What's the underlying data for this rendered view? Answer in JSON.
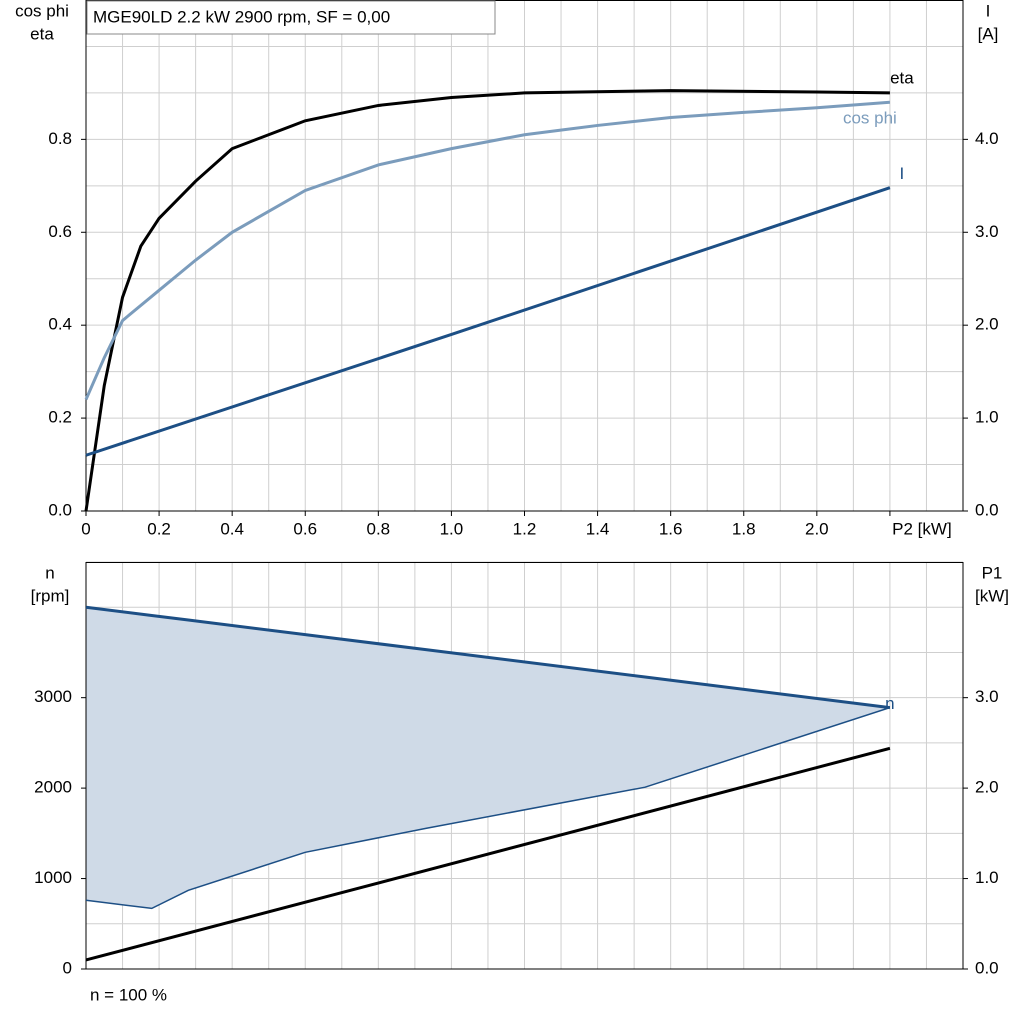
{
  "chart_data": [
    {
      "type": "line",
      "title": "MGE90LD   2.2 kW   2900 rpm, SF = 0,00",
      "y_label": [
        "cos phi",
        "eta"
      ],
      "y2_label": [
        "I",
        "[A]"
      ],
      "xlim": [
        0,
        2.4
      ],
      "xticks": [
        {
          "value": 0,
          "label": "0"
        },
        0.2,
        0.4,
        0.6,
        0.8,
        {
          "value": 1,
          "label": "1.0"
        },
        1.2,
        1.4,
        1.6,
        1.8,
        {
          "value": 2,
          "label": "2.0"
        },
        {
          "value": 2.2,
          "label": "P2 [kW]"
        }
      ],
      "minor_xticks": [
        0.1,
        0.3,
        0.5,
        0.7,
        0.9,
        1.1,
        1.3,
        1.5,
        1.7,
        1.9,
        2.1,
        2.3
      ],
      "ylim": [
        0,
        1.1
      ],
      "yticks": [
        {
          "value": 0,
          "label": "0.0"
        },
        0.2,
        0.4,
        0.6,
        0.8
      ],
      "minor_yticks": [
        0.1,
        0.3,
        0.5,
        0.7,
        0.9,
        1.0,
        1.1
      ],
      "y2lim": [
        0,
        5.5
      ],
      "y2ticks": [
        {
          "value": 0,
          "label": "0.0"
        },
        {
          "value": 1,
          "label": "1.0"
        },
        {
          "value": 2,
          "label": "2.0"
        },
        {
          "value": 3,
          "label": "3.0"
        },
        {
          "value": 4,
          "label": "4.0"
        }
      ],
      "grid": true,
      "series": [
        {
          "name": "eta",
          "color": "#000000",
          "x": [
            0,
            0.05,
            0.1,
            0.15,
            0.2,
            0.3,
            0.4,
            0.6,
            0.8,
            1.0,
            1.2,
            1.6,
            2.0,
            2.2
          ],
          "values": [
            0,
            0.27,
            0.46,
            0.57,
            0.63,
            0.71,
            0.78,
            0.84,
            0.873,
            0.89,
            0.9,
            0.905,
            0.902,
            0.9
          ]
        },
        {
          "name": "cos phi",
          "color": "#7b9cbc",
          "x": [
            0,
            0.05,
            0.1,
            0.2,
            0.3,
            0.4,
            0.6,
            0.8,
            1.0,
            1.2,
            1.4,
            1.6,
            1.8,
            2.0,
            2.2
          ],
          "values": [
            0.24,
            0.33,
            0.41,
            0.475,
            0.54,
            0.6,
            0.69,
            0.745,
            0.78,
            0.81,
            0.83,
            0.847,
            0.858,
            0.868,
            0.88
          ]
        },
        {
          "name": "I",
          "color": "#1d4f85",
          "axis": "y2",
          "x": [
            0,
            1.0,
            2.2
          ],
          "values": [
            0.6,
            1.9,
            3.48
          ]
        }
      ]
    },
    {
      "type": "line",
      "y_label": [
        "n",
        "[rpm]"
      ],
      "y2_label": [
        "P1",
        "[kW]"
      ],
      "note": "n = 100 %",
      "xlim": [
        0,
        2.4
      ],
      "minor_xticks": [
        0.1,
        0.2,
        0.3,
        0.4,
        0.5,
        0.6,
        0.7,
        0.8,
        0.9,
        1.0,
        1.1,
        1.2,
        1.3,
        1.4,
        1.5,
        1.6,
        1.7,
        1.8,
        1.9,
        2.0,
        2.1,
        2.2,
        2.3
      ],
      "ylim": [
        0,
        4500
      ],
      "yticks": [
        0,
        1000,
        2000,
        3000
      ],
      "minor_yticks": [
        500,
        1500,
        2500,
        3500,
        4000,
        4500
      ],
      "y2lim": [
        0,
        4.5
      ],
      "y2ticks": [
        {
          "value": 0,
          "label": "0.0"
        },
        {
          "value": 1,
          "label": "1.0"
        },
        {
          "value": 2,
          "label": "2.0"
        },
        {
          "value": 3,
          "label": "3.0"
        }
      ],
      "grid": true,
      "fill_color": "#cfdae7",
      "series": [
        {
          "name": "n",
          "color": "#1d4f85",
          "x": [
            0,
            0.18,
            0.28,
            0.6,
            0.93,
            1.53,
            2.2
          ],
          "values": [
            4000,
            3909,
            3859,
            3697,
            3531,
            3228,
            2890
          ]
        },
        {
          "color": "#1d4f85",
          "x": [
            0,
            0.18,
            0.28,
            0.6,
            0.93,
            1.53,
            2.2
          ],
          "values": [
            760,
            670,
            870,
            1290,
            1555,
            2010,
            2890
          ]
        },
        {
          "color": "#000000",
          "axis": "y2",
          "x": [
            0,
            2.2
          ],
          "values": [
            0.1,
            2.44
          ]
        }
      ]
    }
  ]
}
